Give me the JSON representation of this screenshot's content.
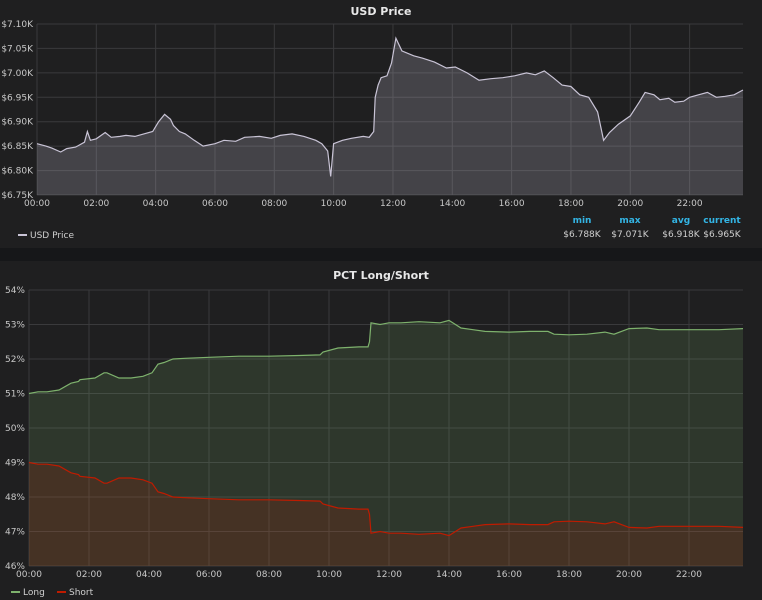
{
  "chart_data": [
    {
      "type": "area",
      "title": "USD Price",
      "xlabel": "",
      "ylabel": "",
      "x_ticks": [
        "00:00",
        "02:00",
        "04:00",
        "06:00",
        "08:00",
        "10:00",
        "12:00",
        "14:00",
        "16:00",
        "18:00",
        "20:00",
        "22:00"
      ],
      "x_range_hours": [
        0,
        23.8
      ],
      "ylim": [
        6.75,
        7.1
      ],
      "y_ticks": [
        6.75,
        6.8,
        6.85,
        6.9,
        6.95,
        7.0,
        7.05,
        7.1
      ],
      "y_tick_labels": [
        "$6.75K",
        "$6.80K",
        "$6.85K",
        "$6.90K",
        "$6.95K",
        "$7.00K",
        "$7.05K",
        "$7.10K"
      ],
      "grid": true,
      "legend_position": "bottom-left",
      "series": [
        {
          "name": "USD Price",
          "color": "#c9c4d6",
          "x_hours": [
            0,
            0.3,
            0.5,
            0.8,
            1.0,
            1.3,
            1.6,
            1.7,
            1.8,
            2.0,
            2.3,
            2.5,
            2.8,
            3.0,
            3.3,
            3.6,
            3.9,
            4.1,
            4.3,
            4.5,
            4.6,
            4.8,
            5.0,
            5.3,
            5.6,
            6.0,
            6.3,
            6.7,
            7.0,
            7.5,
            7.9,
            8.2,
            8.6,
            9.0,
            9.4,
            9.6,
            9.8,
            9.9,
            10.0,
            10.3,
            10.6,
            11.0,
            11.2,
            11.35,
            11.4,
            11.5,
            11.6,
            11.8,
            11.95,
            12.1,
            12.3,
            12.7,
            13.0,
            13.4,
            13.8,
            14.1,
            14.5,
            14.9,
            15.3,
            15.7,
            16.1,
            16.5,
            16.8,
            17.1,
            17.4,
            17.7,
            18.0,
            18.3,
            18.6,
            18.9,
            19.1,
            19.3,
            19.6,
            20.0,
            20.3,
            20.5,
            20.8,
            21.0,
            21.3,
            21.5,
            21.8,
            22.0,
            22.3,
            22.6,
            22.9,
            23.2,
            23.5,
            23.8
          ],
          "values": [
            6.855,
            6.85,
            6.846,
            6.838,
            6.845,
            6.848,
            6.858,
            6.88,
            6.862,
            6.865,
            6.878,
            6.868,
            6.87,
            6.872,
            6.87,
            6.875,
            6.88,
            6.9,
            6.915,
            6.905,
            6.892,
            6.88,
            6.875,
            6.862,
            6.85,
            6.855,
            6.862,
            6.86,
            6.868,
            6.87,
            6.866,
            6.872,
            6.875,
            6.87,
            6.862,
            6.855,
            6.84,
            6.788,
            6.855,
            6.862,
            6.866,
            6.87,
            6.868,
            6.88,
            6.95,
            6.975,
            6.99,
            6.994,
            7.02,
            7.071,
            7.045,
            7.035,
            7.03,
            7.022,
            7.01,
            7.012,
            7.0,
            6.985,
            6.988,
            6.99,
            6.994,
            7.0,
            6.996,
            7.004,
            6.99,
            6.975,
            6.972,
            6.955,
            6.95,
            6.92,
            6.862,
            6.878,
            6.895,
            6.912,
            6.94,
            6.96,
            6.955,
            6.945,
            6.948,
            6.94,
            6.942,
            6.95,
            6.955,
            6.96,
            6.95,
            6.952,
            6.955,
            6.965
          ]
        }
      ],
      "stats": {
        "headers": [
          "min",
          "max",
          "avg",
          "current"
        ],
        "values": [
          "$6.788K",
          "$7.071K",
          "$6.918K",
          "$6.965K"
        ]
      }
    },
    {
      "type": "area",
      "title": "PCT Long/Short",
      "xlabel": "",
      "ylabel": "",
      "x_ticks": [
        "00:00",
        "02:00",
        "04:00",
        "06:00",
        "08:00",
        "10:00",
        "12:00",
        "14:00",
        "16:00",
        "18:00",
        "20:00",
        "22:00"
      ],
      "x_range_hours": [
        0,
        23.8
      ],
      "ylim": [
        46,
        54
      ],
      "y_ticks": [
        46,
        47,
        48,
        49,
        50,
        51,
        52,
        53,
        54
      ],
      "y_tick_labels": [
        "46%",
        "47%",
        "48%",
        "49%",
        "50%",
        "51%",
        "52%",
        "53%",
        "54%"
      ],
      "grid": true,
      "legend_position": "bottom-left",
      "series": [
        {
          "name": "Long",
          "color": "#7eb26d",
          "x_hours": [
            0,
            0.3,
            0.6,
            1.0,
            1.4,
            1.65,
            1.7,
            2.2,
            2.5,
            2.6,
            3.0,
            3.2,
            3.4,
            3.8,
            4.1,
            4.3,
            4.5,
            4.8,
            5.2,
            6.0,
            7.0,
            8.0,
            9.0,
            9.7,
            9.8,
            10.3,
            11.0,
            11.3,
            11.35,
            11.4,
            11.7,
            12.0,
            12.4,
            13.0,
            13.7,
            14.0,
            14.4,
            14.8,
            15.2,
            16.0,
            16.7,
            17.3,
            17.5,
            18.0,
            18.6,
            19.2,
            19.5,
            20.0,
            20.6,
            21.0,
            21.7,
            22.5,
            23.0,
            23.8
          ],
          "values": [
            51.0,
            51.05,
            51.05,
            51.1,
            51.3,
            51.35,
            51.4,
            51.45,
            51.6,
            51.6,
            51.45,
            51.45,
            51.45,
            51.5,
            51.6,
            51.85,
            51.9,
            52.0,
            52.02,
            52.05,
            52.08,
            52.08,
            52.1,
            52.12,
            52.2,
            52.32,
            52.35,
            52.35,
            52.5,
            53.05,
            53.0,
            53.05,
            53.05,
            53.08,
            53.05,
            53.12,
            52.9,
            52.85,
            52.8,
            52.78,
            52.8,
            52.8,
            52.72,
            52.7,
            52.72,
            52.78,
            52.72,
            52.88,
            52.9,
            52.85,
            52.85,
            52.85,
            52.85,
            52.88
          ]
        },
        {
          "name": "Short",
          "color": "#bf1b00",
          "x_hours": [
            0,
            0.3,
            0.6,
            1.0,
            1.4,
            1.65,
            1.7,
            2.2,
            2.5,
            2.6,
            3.0,
            3.2,
            3.4,
            3.8,
            4.1,
            4.3,
            4.5,
            4.8,
            5.2,
            6.0,
            7.0,
            8.0,
            9.0,
            9.7,
            9.8,
            10.3,
            11.0,
            11.3,
            11.35,
            11.4,
            11.7,
            12.0,
            12.4,
            13.0,
            13.7,
            14.0,
            14.4,
            14.8,
            15.2,
            16.0,
            16.7,
            17.3,
            17.5,
            18.0,
            18.6,
            19.2,
            19.5,
            20.0,
            20.6,
            21.0,
            21.7,
            22.5,
            23.0,
            23.8
          ],
          "values": [
            49.0,
            48.95,
            48.95,
            48.9,
            48.7,
            48.65,
            48.6,
            48.55,
            48.4,
            48.4,
            48.55,
            48.55,
            48.55,
            48.5,
            48.4,
            48.15,
            48.1,
            48.0,
            47.98,
            47.95,
            47.92,
            47.92,
            47.9,
            47.88,
            47.8,
            47.68,
            47.65,
            47.65,
            47.5,
            46.95,
            47.0,
            46.95,
            46.95,
            46.92,
            46.95,
            46.88,
            47.1,
            47.15,
            47.2,
            47.22,
            47.2,
            47.2,
            47.28,
            47.3,
            47.28,
            47.22,
            47.28,
            47.12,
            47.1,
            47.15,
            47.15,
            47.15,
            47.15,
            47.12
          ]
        }
      ]
    }
  ]
}
